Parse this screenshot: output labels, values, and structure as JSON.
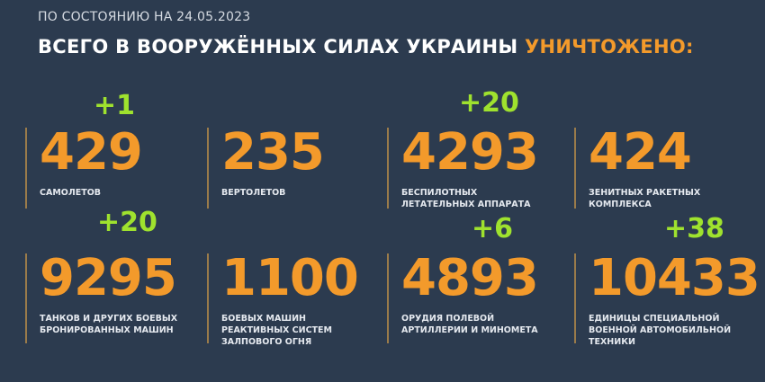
{
  "header": {
    "date": "ПО СОСТОЯНИЮ НА 24.05.2023",
    "title_main": "ВСЕГО В ВООРУЖЁННЫХ СИЛАХ УКРАИНЫ",
    "title_accent": "УНИЧТОЖЕНО:"
  },
  "colors": {
    "background": "#2c3b4f",
    "number": "#f39a2b",
    "delta": "#9fe22e",
    "text": "#ffffff"
  },
  "stats": [
    {
      "value": "429",
      "label": "САМОЛЕТОВ",
      "delta": "+1"
    },
    {
      "value": "235",
      "label": "ВЕРТОЛЕТОВ",
      "delta": ""
    },
    {
      "value": "4293",
      "label": "БЕСПИЛОТНЫХ\nЛЕТАТЕЛЬНЫХ АППАРАТА",
      "delta": "+20"
    },
    {
      "value": "424",
      "label": "ЗЕНИТНЫХ РАКЕТНЫХ\nКОМПЛЕКСА",
      "delta": ""
    },
    {
      "value": "9295",
      "label": "ТАНКОВ И ДРУГИХ БОЕВЫХ\nБРОНИРОВАННЫХ МАШИН",
      "delta": "+20"
    },
    {
      "value": "1100",
      "label": "БОЕВЫХ МАШИН\nРЕАКТИВНЫХ СИСТЕМ\nЗАЛПОВОГО ОГНЯ",
      "delta": ""
    },
    {
      "value": "4893",
      "label": "ОРУДИЯ ПОЛЕВОЙ\nАРТИЛЛЕРИИ И МИНОМЕТА",
      "delta": "+6"
    },
    {
      "value": "10433",
      "label": "ЕДИНИЦЫ СПЕЦИАЛЬНОЙ\nВОЕННОЙ АВТОМОБИЛЬНОЙ\nТЕХНИКИ",
      "delta": "+38"
    }
  ]
}
